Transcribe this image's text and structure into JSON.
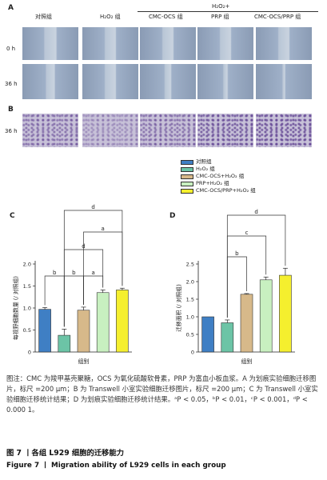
{
  "panel_a": {
    "letter": "A",
    "h2o2_plus": "H₂O₂+",
    "columns": [
      "对照组",
      "H₂O₂ 组",
      "CMC-OCS 组",
      "PRP 组",
      "CMC-OCS/PRP 组"
    ],
    "rows": [
      "0 h",
      "36 h"
    ]
  },
  "panel_b": {
    "letter": "B",
    "row": "36 h"
  },
  "legend": [
    {
      "label": "对照组",
      "color": "#3f7fc4"
    },
    {
      "label": "H₂O₂ 组",
      "color": "#6cc4a6"
    },
    {
      "label": "CMC-OCS+H₂O₂ 组",
      "color": "#d7b98a"
    },
    {
      "label": "PRP+H₂O₂ 组",
      "color": "#c8f0c0"
    },
    {
      "label": "CMC-OCS/PRP+H₂O₂ 组",
      "color": "#f5ef2e"
    }
  ],
  "chart_c": {
    "letter": "C"
  },
  "chart_d": {
    "letter": "D"
  },
  "chart_data": [
    {
      "type": "bar",
      "panel": "C",
      "ylabel": "每视野细胞数量 (/ 对照组)",
      "xlabel": "组别",
      "ylim": [
        0,
        2.0
      ],
      "yticks": [
        "0",
        "0.5",
        "1.0",
        "1.5",
        "2.0"
      ],
      "values": [
        0.97,
        0.38,
        0.95,
        1.35,
        1.41
      ],
      "errors": [
        0.04,
        0.14,
        0.07,
        0.06,
        0.04
      ],
      "colors": [
        "#3f7fc4",
        "#6cc4a6",
        "#d7b98a",
        "#c8f0c0",
        "#f5ef2e"
      ],
      "significance": [
        {
          "from": 0,
          "to": 1,
          "label": "b"
        },
        {
          "from": 1,
          "to": 2,
          "label": "b"
        },
        {
          "from": 2,
          "to": 3,
          "label": "a"
        },
        {
          "from": 1,
          "to": 3,
          "label": "d"
        },
        {
          "from": 2,
          "to": 4,
          "label": "a"
        },
        {
          "from": 1,
          "to": 4,
          "label": "d"
        }
      ]
    },
    {
      "type": "bar",
      "panel": "D",
      "ylabel": "迁移面积 (/ 对照组)",
      "xlabel": "组别",
      "ylim": [
        0,
        2.5
      ],
      "yticks": [
        "0",
        "0.5",
        "1.0",
        "1.5",
        "2.0",
        "2.5"
      ],
      "values": [
        1.0,
        0.83,
        1.64,
        2.05,
        2.18
      ],
      "errors": [
        0.0,
        0.08,
        0.02,
        0.08,
        0.2
      ],
      "colors": [
        "#3f7fc4",
        "#6cc4a6",
        "#d7b98a",
        "#c8f0c0",
        "#f5ef2e"
      ],
      "significance": [
        {
          "from": 1,
          "to": 2,
          "label": "b"
        },
        {
          "from": 1,
          "to": 3,
          "label": "c"
        },
        {
          "from": 1,
          "to": 4,
          "label": "d"
        }
      ]
    }
  ],
  "caption": {
    "body": "图注：CMC 为羧甲基壳聚糖，OCS 为氧化硫酸软骨素，PRP 为富血小板血浆。A 为划痕实验细胞迁移图片，标尺 =200 μm；B 为 Transwell 小室实验细胞迁移图片，标尺 =200 μm；C 为 Transwell 小室实验细胞迁移统计结果；D 为划痕实验细胞迁移统计结果。ᵃP < 0.05，ᵇP < 0.01，ᶜP < 0.001，ᵈP < 0.000 1。",
    "title_cn": "图 7 丨各组 L929 细胞的迁移能力",
    "title_en": "Figure 7 丨 Migration ability of L929 cells in each group"
  }
}
